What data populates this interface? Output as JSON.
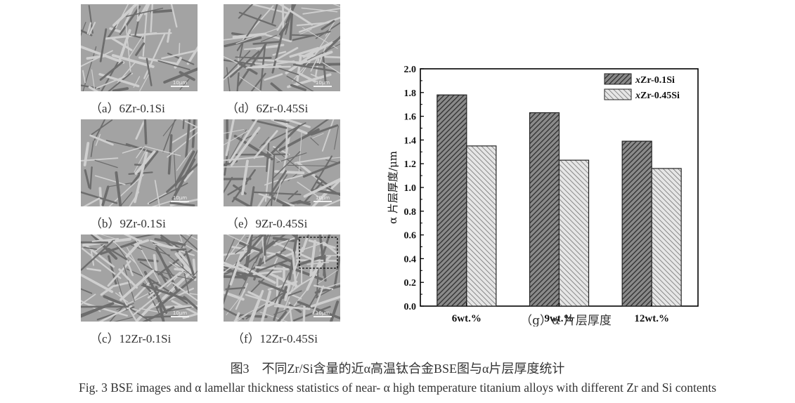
{
  "panels": [
    {
      "id": "a",
      "caption": "（a）6Zr-0.1Si",
      "scale_bar": "10μm"
    },
    {
      "id": "d",
      "caption": "（d）6Zr-0.45Si",
      "scale_bar": "10μm"
    },
    {
      "id": "b",
      "caption": "（b）9Zr-0.1Si",
      "scale_bar": "10μm"
    },
    {
      "id": "e",
      "caption": "（e）9Zr-0.45Si",
      "scale_bar": "10μm"
    },
    {
      "id": "c",
      "caption": "（c）12Zr-0.1Si",
      "scale_bar": "10μm"
    },
    {
      "id": "f",
      "caption": "（f）12Zr-0.45Si",
      "scale_bar": "10μm"
    }
  ],
  "chart_data": {
    "type": "bar",
    "categories": [
      "6wt.%",
      "9wt.%",
      "12wt.%"
    ],
    "series": [
      {
        "name": "xZr-0.1Si",
        "values": [
          1.78,
          1.63,
          1.39
        ],
        "pattern": "dense-hatch"
      },
      {
        "name": "xZr-0.45Si",
        "values": [
          1.35,
          1.23,
          1.16
        ],
        "pattern": "light-hatch"
      }
    ],
    "ylabel": "α 片层厚度/μm",
    "ylim": [
      0.0,
      2.0
    ],
    "yticks": [
      "0.0",
      "0.2",
      "0.4",
      "0.6",
      "0.8",
      "1.0",
      "1.2",
      "1.4",
      "1.6",
      "1.8",
      "2.0"
    ],
    "legend_position": "top-right",
    "caption": "（g）α 片层厚度"
  },
  "figure": {
    "title_cn": "图3　不同Zr/Si含量的近α高温钛合金BSE图与α片层厚度统计",
    "title_en": "Fig. 3 BSE images and  α  lamellar thickness statistics of near- α  high temperature titanium alloys with different Zr and Si contents"
  },
  "colors": {
    "bar_dark": "#555555",
    "bar_light": "#9a9a9a",
    "axis": "#000000"
  }
}
